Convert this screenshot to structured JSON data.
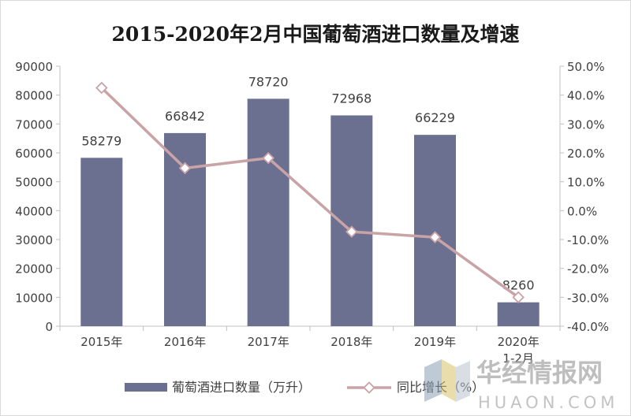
{
  "chart_data": {
    "type": "bar",
    "title": "2015-2020年2月中国葡萄酒进口数量及增速",
    "categories": [
      {
        "line1": "2015年",
        "line2": ""
      },
      {
        "line1": "2016年",
        "line2": ""
      },
      {
        "line1": "2017年",
        "line2": ""
      },
      {
        "line1": "2018年",
        "line2": ""
      },
      {
        "line1": "2019年",
        "line2": ""
      },
      {
        "line1": "2020年",
        "line2": "1-2月"
      }
    ],
    "series": [
      {
        "name": "葡萄酒进口数量（万升）",
        "type": "bar",
        "axis": "left",
        "color": "#6b7091",
        "values": [
          58279,
          66842,
          78720,
          72968,
          66229,
          8260
        ],
        "data_labels": [
          "58279",
          "66842",
          "78720",
          "72968",
          "66229",
          "8260"
        ]
      },
      {
        "name": "同比增长（%）",
        "type": "line",
        "axis": "right",
        "color": "#c9a3a6",
        "marker": "diamond",
        "values": [
          42.5,
          14.7,
          18.2,
          -7.3,
          -9.2,
          -30.0
        ]
      }
    ],
    "y_left": {
      "min": 0,
      "max": 90000,
      "step": 10000,
      "ticks": [
        "0",
        "10000",
        "20000",
        "30000",
        "40000",
        "50000",
        "60000",
        "70000",
        "80000",
        "90000"
      ]
    },
    "y_right": {
      "min": -40,
      "max": 50,
      "step": 10,
      "ticks": [
        "-40.0%",
        "-30.0%",
        "-20.0%",
        "-10.0%",
        "0.0%",
        "10.0%",
        "20.0%",
        "30.0%",
        "40.0%",
        "50.0%"
      ]
    },
    "grid": false,
    "legend": "bottom"
  },
  "watermark": {
    "main": "华经情报网",
    "sub": "HUAON.COM"
  },
  "colors": {
    "bar": "#6b7091",
    "line": "#c9a3a6",
    "axis": "#c0c0c0",
    "text": "#404040"
  }
}
